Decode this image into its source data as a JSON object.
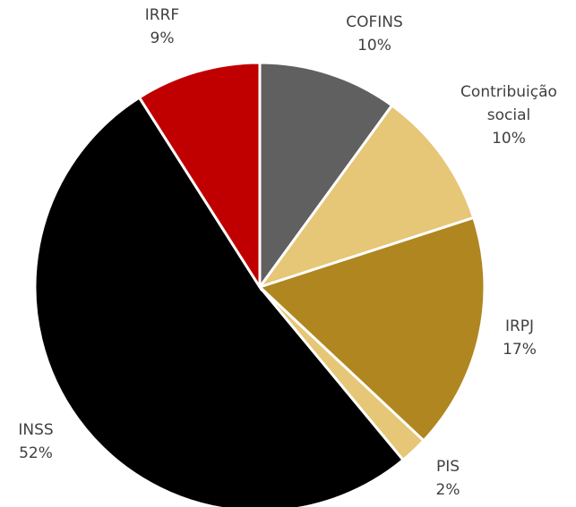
{
  "chart_data": {
    "type": "pie",
    "categories": [
      "COFINS",
      "Contribuição social",
      "IRPJ",
      "PIS",
      "INSS",
      "IRRF"
    ],
    "values": [
      10,
      10,
      17,
      2,
      52,
      9
    ],
    "value_labels": [
      "10%",
      "10%",
      "17%",
      "2%",
      "52%",
      "9%"
    ],
    "colors": [
      "#606060",
      "#e6c677",
      "#b08620",
      "#e6c677",
      "#000000",
      "#c00000"
    ]
  }
}
